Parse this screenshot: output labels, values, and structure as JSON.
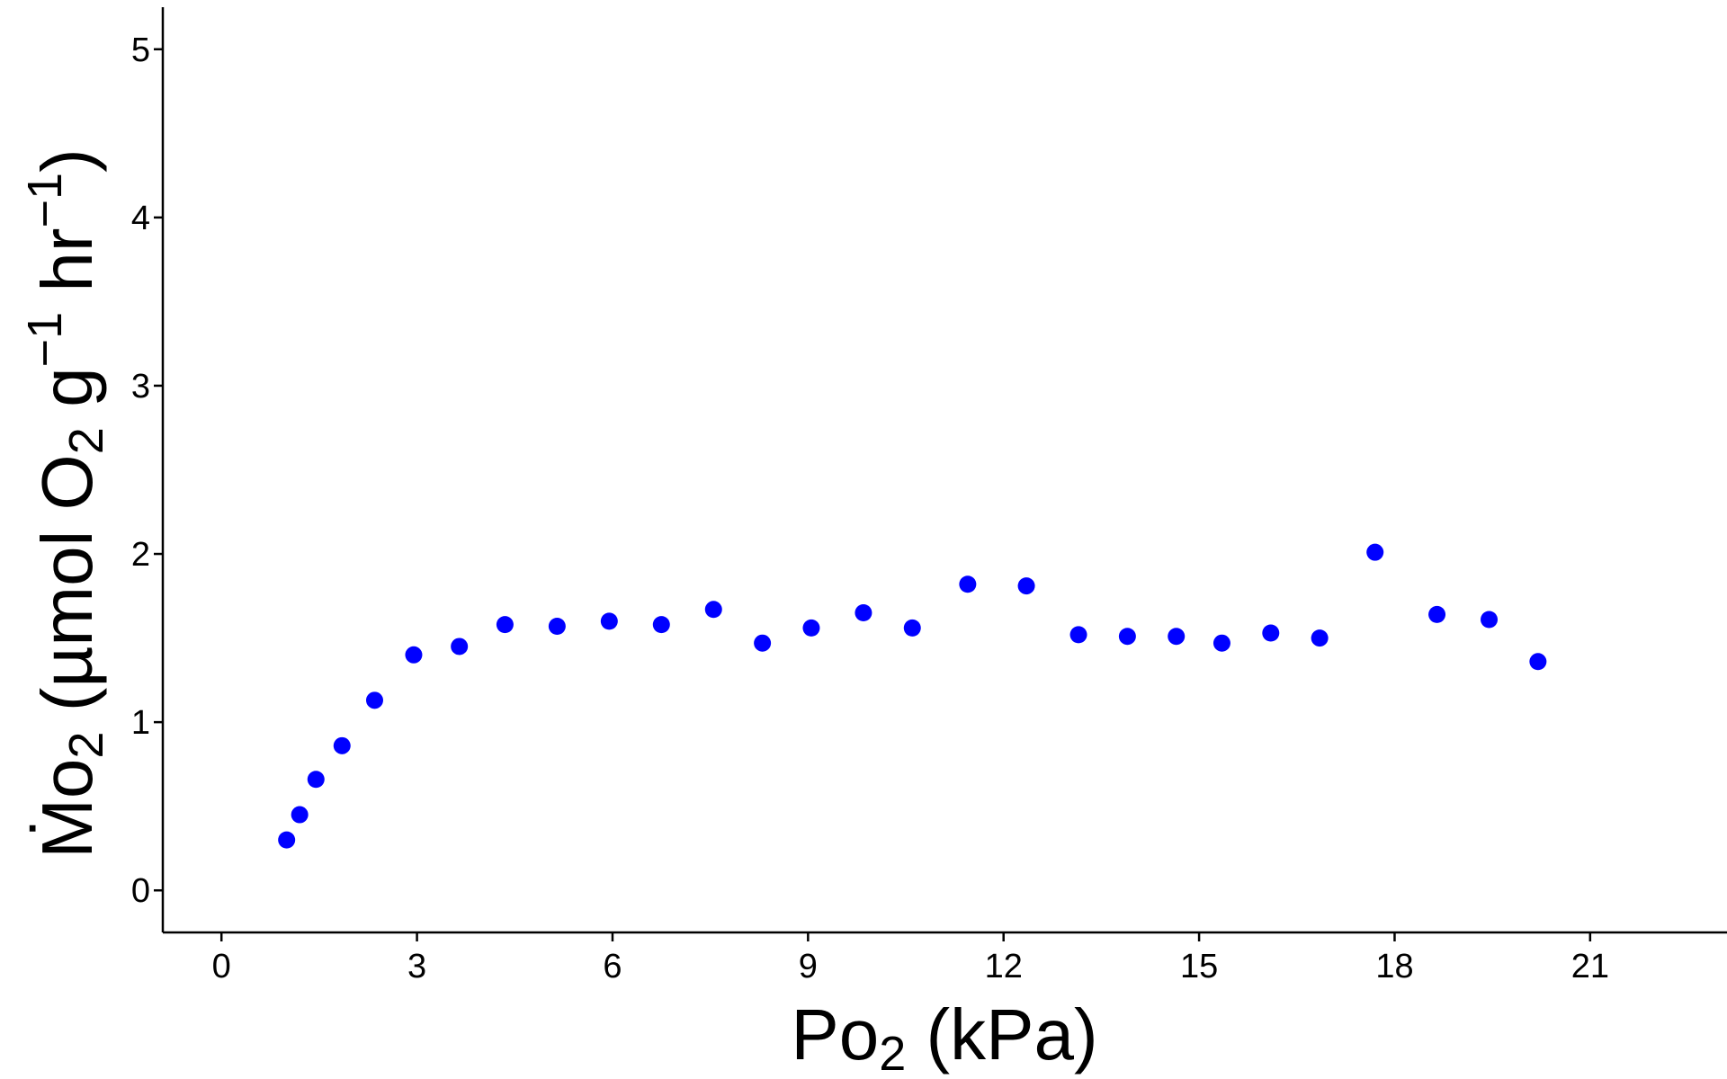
{
  "chart_data": {
    "type": "scatter",
    "xlabel": {
      "main": "Po",
      "sub": "2",
      "rest": " (kPa)"
    },
    "ylabel": {
      "main": "Ṁo",
      "sub1": "2",
      "mid": " (µmol O",
      "sub2": "2",
      "mid2": " g",
      "sup1": "−1",
      "mid3": " hr",
      "sup2": "−1",
      "end": ")"
    },
    "xlim": [
      -0.9,
      23.1
    ],
    "ylim": [
      -0.25,
      5.25
    ],
    "x_ticks": [
      "0",
      "3",
      "6",
      "9",
      "12",
      "15",
      "18",
      "21"
    ],
    "y_ticks": [
      "0",
      "1",
      "2",
      "3",
      "4",
      "5"
    ],
    "grid": false,
    "point_color": "#0000ff",
    "points": [
      {
        "x": 1.0,
        "y": 0.3
      },
      {
        "x": 1.2,
        "y": 0.45
      },
      {
        "x": 1.45,
        "y": 0.66
      },
      {
        "x": 1.85,
        "y": 0.86
      },
      {
        "x": 2.35,
        "y": 1.13
      },
      {
        "x": 2.95,
        "y": 1.4
      },
      {
        "x": 3.65,
        "y": 1.45
      },
      {
        "x": 4.35,
        "y": 1.58
      },
      {
        "x": 5.15,
        "y": 1.57
      },
      {
        "x": 5.95,
        "y": 1.6
      },
      {
        "x": 6.75,
        "y": 1.58
      },
      {
        "x": 7.55,
        "y": 1.67
      },
      {
        "x": 8.3,
        "y": 1.47
      },
      {
        "x": 9.05,
        "y": 1.56
      },
      {
        "x": 9.85,
        "y": 1.65
      },
      {
        "x": 10.6,
        "y": 1.56
      },
      {
        "x": 11.45,
        "y": 1.82
      },
      {
        "x": 12.35,
        "y": 1.81
      },
      {
        "x": 13.15,
        "y": 1.52
      },
      {
        "x": 13.9,
        "y": 1.51
      },
      {
        "x": 14.65,
        "y": 1.51
      },
      {
        "x": 15.35,
        "y": 1.47
      },
      {
        "x": 16.1,
        "y": 1.53
      },
      {
        "x": 16.85,
        "y": 1.5
      },
      {
        "x": 17.7,
        "y": 2.01
      },
      {
        "x": 18.65,
        "y": 1.64
      },
      {
        "x": 19.45,
        "y": 1.61
      },
      {
        "x": 20.2,
        "y": 1.36
      }
    ]
  }
}
